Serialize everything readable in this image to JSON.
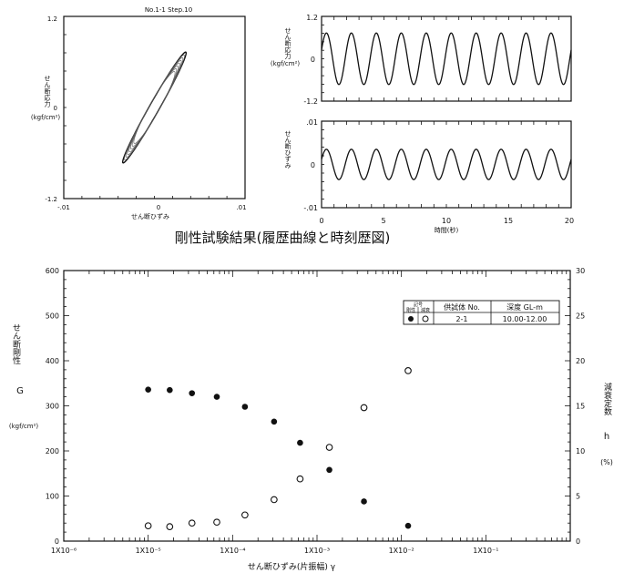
{
  "caption": "剛性試験結果(履歴曲線と時刻歴図)",
  "chart_data": [
    {
      "type": "line",
      "id": "hysteresis",
      "title": "No.1-1 Step.10",
      "xlabel": "せん断ひずみ",
      "ylabel": "せん断応力",
      "yunit": "(kgf/cm²)",
      "xlim": [
        -0.01,
        0.01
      ],
      "ylim": [
        -1.2,
        1.2
      ],
      "x_ticks": [
        "-.01",
        "0",
        ".01"
      ],
      "y_ticks": [
        "-1.2",
        "0",
        "1.2"
      ],
      "loop": {
        "strain_amplitude": 0.0035,
        "stress_amplitude": 0.73
      }
    },
    {
      "type": "line",
      "id": "stress-time",
      "ylabel": "せん断応力",
      "yunit": "(kgf/cm²)",
      "xlim": [
        0,
        20
      ],
      "ylim": [
        -1.2,
        1.2
      ],
      "y_ticks": [
        "1.2",
        "0",
        "-1.2"
      ],
      "series": [
        {
          "amplitude": 0.73,
          "cycles": 10
        }
      ]
    },
    {
      "type": "line",
      "id": "strain-time",
      "ylabel": "せん断ひずみ",
      "xlabel": "時間(秒)",
      "xlim": [
        0,
        20
      ],
      "ylim": [
        -0.01,
        0.01
      ],
      "x_ticks": [
        "0",
        "5",
        "10",
        "15",
        "20"
      ],
      "y_ticks": [
        ".01",
        "0",
        "-.01"
      ],
      "series": [
        {
          "amplitude": 0.0035,
          "cycles": 10
        }
      ]
    },
    {
      "type": "scatter",
      "id": "modulus-damping",
      "xlabel": "せん断ひずみ(片振幅) γ",
      "ylabel_left": "せん断剛性",
      "ylabel_left_symbol": "G",
      "ylabel_left_unit": "(kgf/cm²)",
      "ylabel_right": "減衰定数",
      "ylabel_right_symbol": "h",
      "ylabel_right_unit": "(%)",
      "x_scale": "log",
      "xlim": [
        1e-06,
        1
      ],
      "ylim_left": [
        0,
        600
      ],
      "ylim_right": [
        0,
        30
      ],
      "x_ticks": [
        "1X10⁻⁶",
        "1X10⁻⁵",
        "1X10⁻⁴",
        "1X10⁻³",
        "1X10⁻²",
        "1X10⁻¹"
      ],
      "y_ticks_left": [
        "0",
        "100",
        "200",
        "300",
        "400",
        "500",
        "600"
      ],
      "y_ticks_right": [
        "0",
        "5",
        "10",
        "15",
        "20",
        "25",
        "30"
      ],
      "series": [
        {
          "name": "剛性",
          "marker": "filled",
          "axis": "left",
          "x": [
            1e-05,
            1.8e-05,
            3.3e-05,
            6.5e-05,
            0.00014,
            0.00031,
            0.00063,
            0.0014,
            0.0036,
            0.012
          ],
          "y": [
            336,
            335,
            328,
            320,
            298,
            265,
            218,
            158,
            88,
            34
          ]
        },
        {
          "name": "減衰",
          "marker": "open",
          "axis": "right",
          "x": [
            1e-05,
            1.8e-05,
            3.3e-05,
            6.5e-05,
            0.00014,
            0.00031,
            0.00063,
            0.0014,
            0.0036,
            0.012
          ],
          "y": [
            1.7,
            1.6,
            2.0,
            2.1,
            2.9,
            4.6,
            6.9,
            10.4,
            14.8,
            18.9
          ]
        }
      ],
      "legend": {
        "head_symbol": "記号",
        "head_symbol_sub": [
          "剛性",
          "減衰"
        ],
        "head_specimen": "供試体 No.",
        "head_depth": "深度 GL-m",
        "specimen": "2-1",
        "depth": "10.00-12.00"
      }
    }
  ]
}
